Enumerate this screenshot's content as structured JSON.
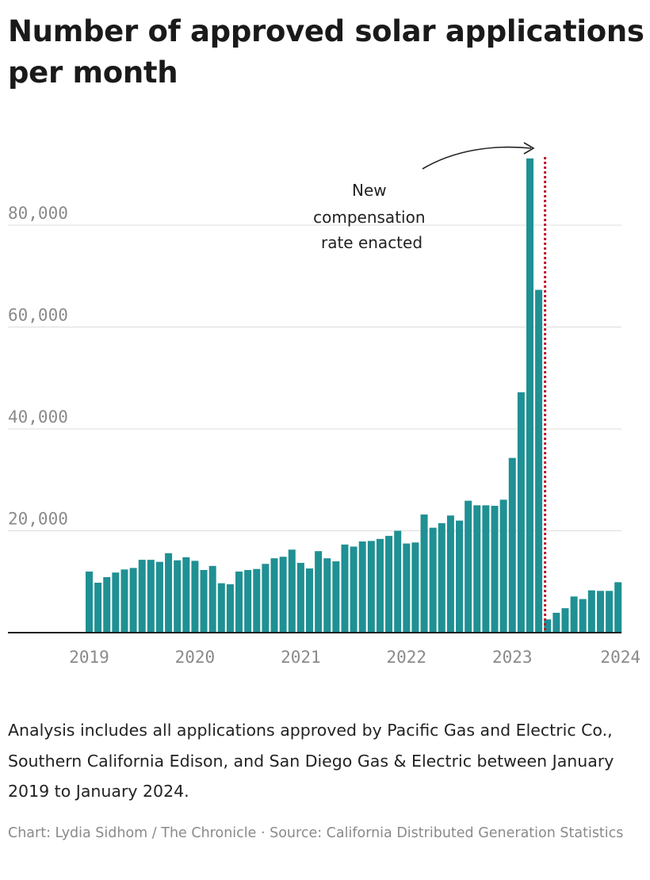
{
  "title": "Number of approved solar applications per month",
  "note": "Analysis includes all applications approved by Pacific Gas and Electric Co., Southern California Edison, and San Diego Gas & Electric between January 2019 to January 2024.",
  "credit": {
    "chart_label": "Chart: Lydia Sidhom / The Chronicle",
    "separator": " · ",
    "source_label": "Source: California Distributed Generation Statistics"
  },
  "colors": {
    "bar": "#1f9093",
    "event_line": "#c0142a",
    "grid": "#dcdcdc",
    "axis": "#222222"
  },
  "chart_data": {
    "type": "bar",
    "title": "Number of approved solar applications per month",
    "xlabel": "",
    "ylabel": "",
    "ylim": [
      0,
      95000
    ],
    "y_ticks": [
      {
        "value": 20000,
        "label": "20,000"
      },
      {
        "value": 40000,
        "label": "40,000"
      },
      {
        "value": 60000,
        "label": "60,000"
      },
      {
        "value": 80000,
        "label": "80,000"
      }
    ],
    "x_ticks": [
      {
        "label": "2019",
        "month_index": 0
      },
      {
        "label": "2020",
        "month_index": 12
      },
      {
        "label": "2021",
        "month_index": 24
      },
      {
        "label": "2022",
        "month_index": 36
      },
      {
        "label": "2023",
        "month_index": 48
      },
      {
        "label": "2024",
        "month_index": 60
      }
    ],
    "grid": true,
    "categories": [
      "2019-01",
      "2019-02",
      "2019-03",
      "2019-04",
      "2019-05",
      "2019-06",
      "2019-07",
      "2019-08",
      "2019-09",
      "2019-10",
      "2019-11",
      "2019-12",
      "2020-01",
      "2020-02",
      "2020-03",
      "2020-04",
      "2020-05",
      "2020-06",
      "2020-07",
      "2020-08",
      "2020-09",
      "2020-10",
      "2020-11",
      "2020-12",
      "2021-01",
      "2021-02",
      "2021-03",
      "2021-04",
      "2021-05",
      "2021-06",
      "2021-07",
      "2021-08",
      "2021-09",
      "2021-10",
      "2021-11",
      "2021-12",
      "2022-01",
      "2022-02",
      "2022-03",
      "2022-04",
      "2022-05",
      "2022-06",
      "2022-07",
      "2022-08",
      "2022-09",
      "2022-10",
      "2022-11",
      "2022-12",
      "2023-01",
      "2023-02",
      "2023-03",
      "2023-04",
      "2023-05",
      "2023-06",
      "2023-07",
      "2023-08",
      "2023-09",
      "2023-10",
      "2023-11",
      "2023-12",
      "2024-01"
    ],
    "values": [
      12000,
      9800,
      10900,
      11800,
      12400,
      12700,
      14300,
      14300,
      13900,
      15600,
      14200,
      14800,
      14100,
      12300,
      13100,
      9700,
      9500,
      12000,
      12300,
      12500,
      13500,
      14600,
      14900,
      16300,
      13700,
      12600,
      16000,
      14600,
      14000,
      17300,
      16900,
      17900,
      18000,
      18400,
      19000,
      20000,
      17500,
      17700,
      23200,
      20600,
      21500,
      23000,
      22000,
      25900,
      25000,
      25000,
      24900,
      26100,
      34300,
      47200,
      93100,
      67300,
      2600,
      3900,
      4800,
      7100,
      6600,
      8300,
      8200,
      8200,
      9900
    ],
    "event": {
      "label_lines": [
        "New",
        "compensation",
        "rate enacted"
      ],
      "after_category": "2023-04"
    }
  }
}
